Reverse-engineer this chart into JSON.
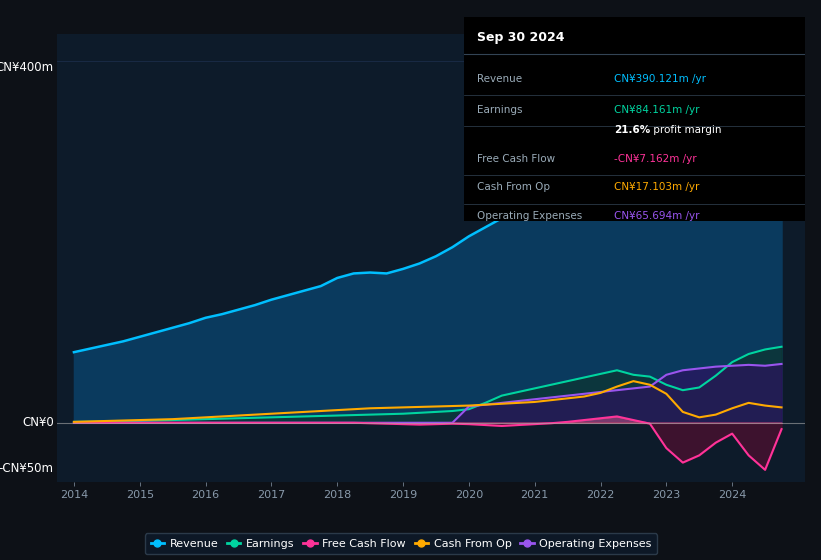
{
  "bg_color": "#0d1117",
  "plot_bg_color": "#0d1b2a",
  "ylabel_top": "CN¥400m",
  "ylabel_zero": "CN¥0",
  "ylabel_neg": "-CN¥50m",
  "ylim": [
    -65,
    430
  ],
  "years": [
    2014.0,
    2014.25,
    2014.5,
    2014.75,
    2015.0,
    2015.25,
    2015.5,
    2015.75,
    2016.0,
    2016.25,
    2016.5,
    2016.75,
    2017.0,
    2017.25,
    2017.5,
    2017.75,
    2018.0,
    2018.25,
    2018.5,
    2018.75,
    2019.0,
    2019.25,
    2019.5,
    2019.75,
    2020.0,
    2020.25,
    2020.5,
    2020.75,
    2021.0,
    2021.25,
    2021.5,
    2021.75,
    2022.0,
    2022.25,
    2022.5,
    2022.75,
    2023.0,
    2023.25,
    2023.5,
    2023.75,
    2024.0,
    2024.25,
    2024.5,
    2024.75
  ],
  "revenue": [
    78,
    82,
    86,
    90,
    95,
    100,
    105,
    110,
    116,
    120,
    125,
    130,
    136,
    141,
    146,
    151,
    160,
    165,
    166,
    165,
    170,
    176,
    184,
    194,
    206,
    216,
    226,
    236,
    246,
    252,
    257,
    262,
    270,
    276,
    268,
    265,
    262,
    267,
    278,
    298,
    328,
    353,
    378,
    390
  ],
  "earnings": [
    1.0,
    1.2,
    1.5,
    1.8,
    2.0,
    2.5,
    3.0,
    3.5,
    4.0,
    4.5,
    5.0,
    5.5,
    6.0,
    6.5,
    7.0,
    7.5,
    8.0,
    8.5,
    9.0,
    9.5,
    10.0,
    11.0,
    12.0,
    13.0,
    15.0,
    22.0,
    30.0,
    34.0,
    38.0,
    42.0,
    46.0,
    50.0,
    54.0,
    58.0,
    53.0,
    51.0,
    42.0,
    36.0,
    39.0,
    52.0,
    67.0,
    76.0,
    81.0,
    84.0
  ],
  "free_cash_flow": [
    0.0,
    0.0,
    0.0,
    0.0,
    0.0,
    0.0,
    0.0,
    0.0,
    0.0,
    0.0,
    0.0,
    0.0,
    0.0,
    0.0,
    0.0,
    0.0,
    0.0,
    0.0,
    -0.5,
    -1.0,
    -1.5,
    -2.0,
    -1.5,
    -1.0,
    -1.5,
    -2.5,
    -3.5,
    -2.5,
    -1.5,
    -0.5,
    1.0,
    3.0,
    5.0,
    7.0,
    3.0,
    -1.0,
    -28.0,
    -44.0,
    -36.0,
    -22.0,
    -12.0,
    -36.0,
    -52.0,
    -7.0
  ],
  "cash_from_op": [
    1.0,
    1.5,
    2.0,
    2.5,
    3.0,
    3.5,
    4.0,
    5.0,
    6.0,
    7.0,
    8.0,
    9.0,
    10.0,
    11.0,
    12.0,
    13.0,
    14.0,
    15.0,
    16.0,
    16.5,
    17.0,
    17.5,
    18.0,
    18.5,
    19.0,
    20.0,
    21.0,
    22.0,
    23.0,
    25.0,
    27.0,
    29.0,
    33.0,
    40.0,
    46.0,
    42.0,
    32.0,
    12.0,
    6.0,
    9.0,
    16.0,
    22.0,
    19.0,
    17.0
  ],
  "op_expenses": [
    0.0,
    0.0,
    0.0,
    0.0,
    0.0,
    0.0,
    0.0,
    0.0,
    0.0,
    0.0,
    0.0,
    0.0,
    0.0,
    0.0,
    0.0,
    0.0,
    0.0,
    0.0,
    0.0,
    0.0,
    0.0,
    0.0,
    0.0,
    0.0,
    18.0,
    20.0,
    22.0,
    24.0,
    26.0,
    28.0,
    30.0,
    32.0,
    34.0,
    36.0,
    38.0,
    40.0,
    53.0,
    58.0,
    60.0,
    62.0,
    63.0,
    64.0,
    63.0,
    65.0
  ],
  "revenue_color": "#00bfff",
  "revenue_fill": "#0a3a5e",
  "earnings_color": "#00d4a0",
  "earnings_fill": "#0d3530",
  "fcf_color": "#ff3399",
  "fcf_fill_neg": "#4a1030",
  "cashop_color": "#ffaa00",
  "opex_color": "#9955ee",
  "opex_fill": "#2e1060",
  "xticks": [
    2014,
    2015,
    2016,
    2017,
    2018,
    2019,
    2020,
    2021,
    2022,
    2023,
    2024
  ],
  "grid_color": "#1e3050",
  "zero_line_color": "#aaaaaa",
  "info_box": {
    "date": "Sep 30 2024",
    "rows": [
      {
        "label": "Revenue",
        "value": "CN¥390.121m /yr",
        "color": "#00bfff"
      },
      {
        "label": "Earnings",
        "value": "CN¥84.161m /yr",
        "color": "#00d4a0"
      },
      {
        "label": "",
        "value": "21.6% profit margin",
        "color": "#ffffff"
      },
      {
        "label": "Free Cash Flow",
        "value": "-CN¥7.162m /yr",
        "color": "#ff3399"
      },
      {
        "label": "Cash From Op",
        "value": "CN¥17.103m /yr",
        "color": "#ffaa00"
      },
      {
        "label": "Operating Expenses",
        "value": "CN¥65.694m /yr",
        "color": "#9955ee"
      }
    ]
  },
  "legend": [
    {
      "label": "Revenue",
      "color": "#00bfff"
    },
    {
      "label": "Earnings",
      "color": "#00d4a0"
    },
    {
      "label": "Free Cash Flow",
      "color": "#ff3399"
    },
    {
      "label": "Cash From Op",
      "color": "#ffaa00"
    },
    {
      "label": "Operating Expenses",
      "color": "#9955ee"
    }
  ]
}
